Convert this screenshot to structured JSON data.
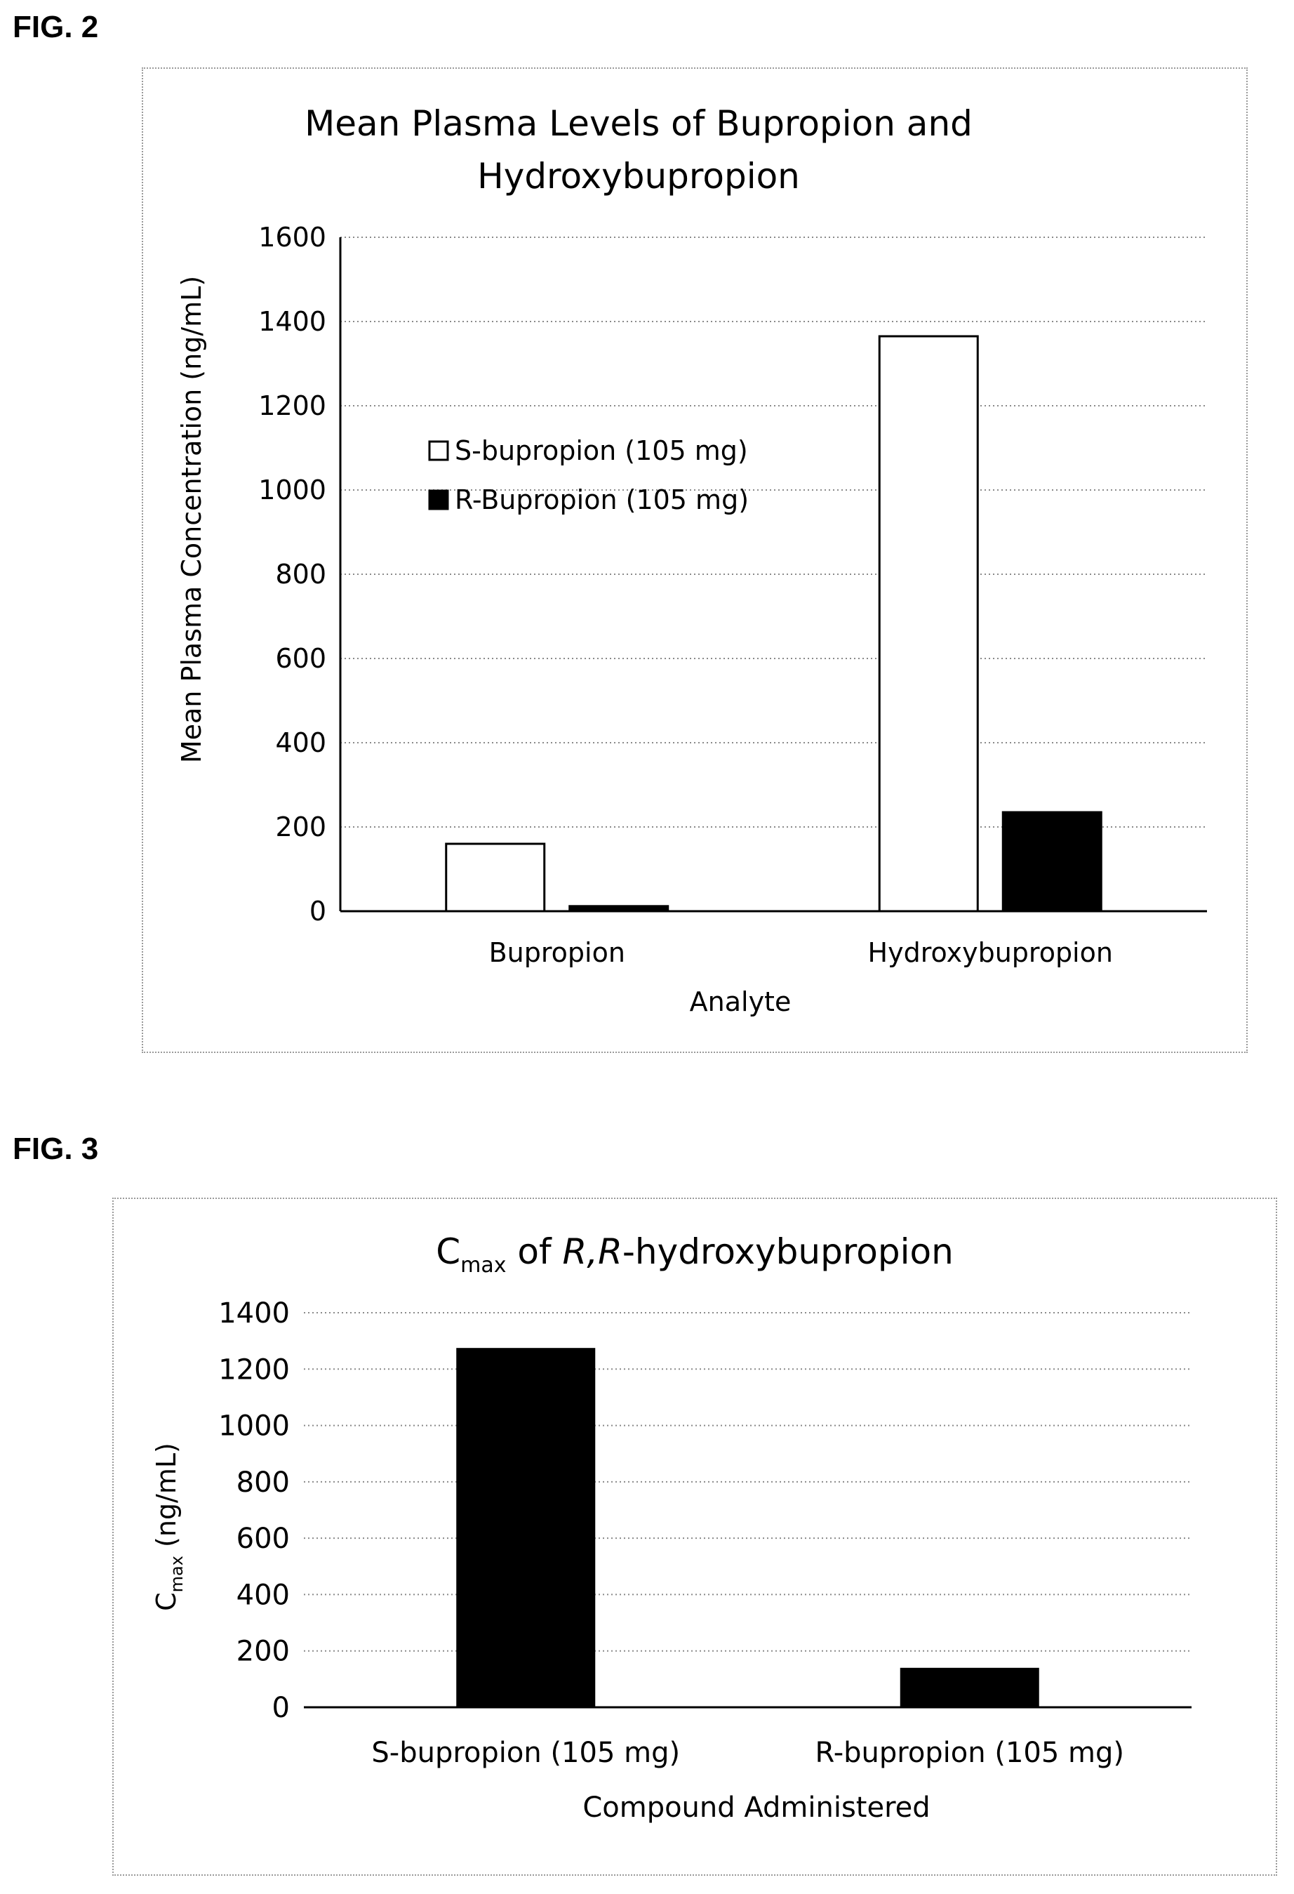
{
  "figures": {
    "fig2_label": "FIG. 2",
    "fig3_label": "FIG. 3"
  },
  "chart_data": [
    {
      "type": "bar",
      "title_line1": "Mean Plasma Levels of Bupropion and",
      "title_line2": "Hydroxybupropion",
      "xlabel": "Analyte",
      "ylabel": "Mean Plasma Concentration (ng/mL)",
      "categories": [
        "Bupropion",
        "Hydroxybupropion"
      ],
      "series": [
        {
          "name": "S-bupropion (105 mg)",
          "values": [
            160,
            1365
          ],
          "color": "#ffffff",
          "stroke": "#000000"
        },
        {
          "name": "R-Bupropion (105 mg)",
          "values": [
            12,
            235
          ],
          "color": "#000000",
          "stroke": "#000000"
        }
      ],
      "ylim": [
        0,
        1600
      ],
      "yticks": [
        0,
        200,
        400,
        600,
        800,
        1000,
        1200,
        1400,
        1600
      ],
      "grid": true,
      "legend_placement": "upper-left"
    },
    {
      "type": "bar",
      "title_main": "C",
      "title_sub": "max",
      "title_of": " of ",
      "title_italic": "R,R",
      "title_rest": "-hydroxybupropion",
      "xlabel": "Compound Administered",
      "ylabel_main": "C",
      "ylabel_sub": "max",
      "ylabel_rest": " (ng/mL)",
      "categories": [
        "S-bupropion (105 mg)",
        "R-bupropion (105 mg)"
      ],
      "values": [
        1275,
        140
      ],
      "color": "#000000",
      "ylim": [
        0,
        1400
      ],
      "yticks": [
        0,
        200,
        400,
        600,
        800,
        1000,
        1200,
        1400
      ],
      "grid": true
    }
  ]
}
